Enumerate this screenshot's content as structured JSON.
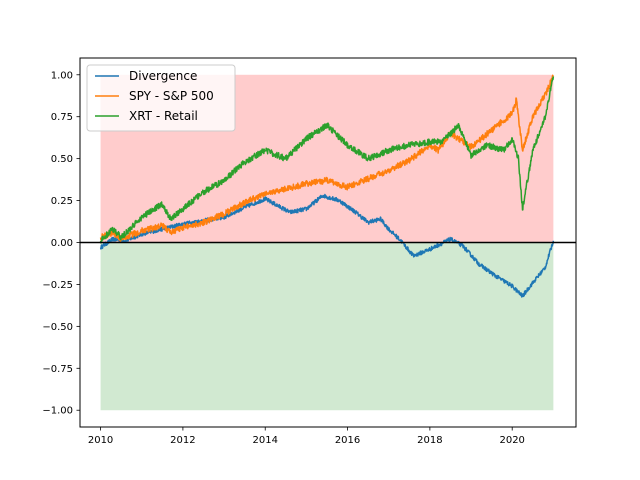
{
  "chart_data": {
    "type": "line",
    "title": "",
    "xlabel": "",
    "ylabel": "",
    "xlim": [
      2009.5,
      2021.55
    ],
    "ylim": [
      -1.1,
      1.1
    ],
    "x_ticks": [
      2010,
      2012,
      2014,
      2016,
      2018,
      2020
    ],
    "y_ticks": [
      -1.0,
      -0.75,
      -0.5,
      -0.25,
      0.0,
      0.25,
      0.5,
      0.75,
      1.0
    ],
    "x_tick_labels": [
      "2010",
      "2012",
      "2014",
      "2016",
      "2018",
      "2020"
    ],
    "y_tick_labels": [
      "−1.00",
      "−0.75",
      "−0.50",
      "−0.25",
      "0.00",
      "0.25",
      "0.50",
      "0.75",
      "1.00"
    ],
    "legend_position": "top-left",
    "grid": false,
    "zero_line": {
      "y": 0,
      "color": "#000000"
    },
    "shaded_regions": [
      {
        "x_range": [
          2010,
          2021
        ],
        "y_range": [
          0,
          1
        ],
        "color": "#ff9999",
        "opacity": 0.5
      },
      {
        "x_range": [
          2010,
          2021
        ],
        "y_range": [
          -1,
          0
        ],
        "color": "#a3d3a3",
        "opacity": 0.5
      }
    ],
    "series": [
      {
        "name": "Divergence",
        "color": "#1f77b4",
        "x": [
          2010,
          2010.3,
          2010.6,
          2011,
          2011.5,
          2012,
          2012.5,
          2013,
          2013.5,
          2014,
          2014.3,
          2014.6,
          2015,
          2015.4,
          2015.8,
          2016.2,
          2016.5,
          2016.8,
          2017.0,
          2017.3,
          2017.6,
          2018.0,
          2018.5,
          2018.8,
          2019.2,
          2019.6,
          2020.0,
          2020.25,
          2020.5,
          2020.8,
          2021
        ],
        "y": [
          -0.03,
          0.02,
          0.01,
          0.05,
          0.08,
          0.11,
          0.13,
          0.15,
          0.21,
          0.26,
          0.22,
          0.18,
          0.2,
          0.28,
          0.25,
          0.18,
          0.12,
          0.14,
          0.08,
          0.01,
          -0.08,
          -0.04,
          0.02,
          -0.02,
          -0.13,
          -0.2,
          -0.26,
          -0.32,
          -0.24,
          -0.15,
          0.01
        ]
      },
      {
        "name": "SPY - S&P 500",
        "color": "#ff7f0e",
        "x": [
          2010,
          2010.3,
          2010.5,
          2010.8,
          2011,
          2011.5,
          2011.7,
          2012,
          2012.5,
          2013,
          2013.5,
          2014,
          2014.5,
          2015,
          2015.5,
          2016.0,
          2016.5,
          2017,
          2017.5,
          2018,
          2018.2,
          2018.5,
          2018.8,
          2019,
          2019.5,
          2020,
          2020.1,
          2020.25,
          2020.5,
          2020.8,
          2021
        ],
        "y": [
          0.03,
          0.06,
          0.02,
          0.05,
          0.07,
          0.1,
          0.06,
          0.09,
          0.12,
          0.17,
          0.24,
          0.29,
          0.32,
          0.35,
          0.37,
          0.33,
          0.38,
          0.43,
          0.49,
          0.58,
          0.55,
          0.65,
          0.6,
          0.57,
          0.67,
          0.77,
          0.85,
          0.55,
          0.75,
          0.88,
          0.99
        ]
      },
      {
        "name": "XRT - Retail",
        "color": "#2ca02c",
        "x": [
          2010,
          2010.3,
          2010.5,
          2010.8,
          2011,
          2011.5,
          2011.7,
          2012,
          2012.5,
          2013,
          2013.5,
          2014,
          2014.5,
          2015,
          2015.5,
          2016,
          2016.5,
          2017,
          2017.5,
          2018,
          2018.3,
          2018.7,
          2019,
          2019.4,
          2019.8,
          2020,
          2020.15,
          2020.25,
          2020.5,
          2020.8,
          2021
        ],
        "y": [
          0.01,
          0.08,
          0.03,
          0.1,
          0.15,
          0.23,
          0.14,
          0.2,
          0.3,
          0.37,
          0.48,
          0.55,
          0.5,
          0.62,
          0.7,
          0.58,
          0.5,
          0.55,
          0.58,
          0.6,
          0.6,
          0.7,
          0.52,
          0.58,
          0.55,
          0.62,
          0.5,
          0.2,
          0.55,
          0.75,
          0.99
        ]
      }
    ]
  }
}
